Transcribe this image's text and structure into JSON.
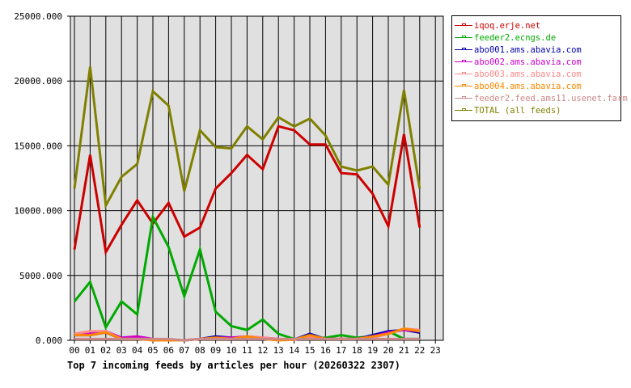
{
  "chart_data": {
    "type": "line",
    "title": "Top 7 incoming feeds by articles per hour (20260322 2307)",
    "xlabel": "",
    "ylabel": "",
    "ylim": [
      0,
      25000
    ],
    "yticks": [
      "0.000",
      "5000.000",
      "10000.000",
      "15000.000",
      "20000.000",
      "25000.000"
    ],
    "grid": true,
    "legend_position": "right",
    "categories": [
      "00",
      "01",
      "02",
      "03",
      "04",
      "05",
      "06",
      "07",
      "08",
      "09",
      "10",
      "11",
      "12",
      "13",
      "14",
      "15",
      "16",
      "17",
      "18",
      "19",
      "20",
      "21",
      "22",
      "23"
    ],
    "series": [
      {
        "name": "iqoq.erje.net",
        "color": "#cc0000",
        "values": [
          7000,
          14300,
          6800,
          8900,
          10800,
          9000,
          10600,
          8000,
          8700,
          11700,
          12900,
          14300,
          13200,
          16500,
          16200,
          15100,
          15100,
          12900,
          12800,
          11300,
          8800,
          15900,
          8700
        ]
      },
      {
        "name": "feeder2.ecngs.de",
        "color": "#00aa00",
        "values": [
          3000,
          4500,
          1000,
          3000,
          2000,
          9500,
          7200,
          3400,
          7000,
          2200,
          1100,
          800,
          1600,
          500,
          100,
          100,
          200,
          400,
          200,
          300,
          700,
          100,
          100
        ]
      },
      {
        "name": "abo001.ams.abavia.com",
        "color": "#0000aa",
        "values": [
          400,
          400,
          600,
          100,
          100,
          100,
          0,
          0,
          100,
          300,
          200,
          100,
          100,
          100,
          50,
          500,
          100,
          100,
          100,
          400,
          700,
          800,
          600
        ]
      },
      {
        "name": "abo002.ams.abavia.com",
        "color": "#cc00cc",
        "values": [
          400,
          500,
          700,
          200,
          300,
          100,
          0,
          0,
          100,
          200,
          200,
          300,
          200,
          100,
          50,
          400,
          100,
          100,
          100,
          300,
          600,
          800,
          700
        ]
      },
      {
        "name": "abo003.ams.abavia.com",
        "color": "#ff8888",
        "values": [
          500,
          700,
          700,
          100,
          100,
          100,
          0,
          0,
          100,
          100,
          100,
          300,
          200,
          100,
          50,
          300,
          100,
          100,
          100,
          200,
          500,
          900,
          800
        ]
      },
      {
        "name": "abo004.ams.abavia.com",
        "color": "#ff8800",
        "values": [
          400,
          400,
          600,
          100,
          100,
          0,
          0,
          0,
          100,
          200,
          100,
          300,
          100,
          0,
          50,
          400,
          100,
          100,
          100,
          300,
          500,
          900,
          700
        ]
      },
      {
        "name": "feeder2.feed.ams11.usenet.farm",
        "color": "#cc8888",
        "values": [
          100,
          100,
          100,
          100,
          100,
          100,
          100,
          0,
          100,
          100,
          100,
          100,
          100,
          100,
          100,
          100,
          100,
          100,
          100,
          100,
          100,
          100,
          100
        ]
      },
      {
        "name": "TOTAL (all feeds)",
        "color": "#808000",
        "values": [
          11700,
          21100,
          10400,
          12600,
          13600,
          19200,
          18100,
          11500,
          16200,
          14900,
          14800,
          16500,
          15500,
          17200,
          16500,
          17100,
          15800,
          13400,
          13100,
          13400,
          12000,
          19300,
          11700
        ]
      }
    ]
  },
  "legend": {
    "items": [
      {
        "label": "iqoq.erje.net",
        "color": "#cc0000"
      },
      {
        "label": "feeder2.ecngs.de",
        "color": "#00aa00"
      },
      {
        "label": "abo001.ams.abavia.com",
        "color": "#0000aa"
      },
      {
        "label": "abo002.ams.abavia.com",
        "color": "#cc00cc"
      },
      {
        "label": "abo003.ams.abavia.com",
        "color": "#ff8888"
      },
      {
        "label": "abo004.ams.abavia.com",
        "color": "#ff8800"
      },
      {
        "label": "feeder2.feed.ams11.usenet.farm",
        "color": "#cc8888"
      },
      {
        "label": "TOTAL (all feeds)",
        "color": "#808000"
      }
    ]
  },
  "colors": {
    "plot_bg": "#e0e0e0",
    "grid": "#000000"
  }
}
